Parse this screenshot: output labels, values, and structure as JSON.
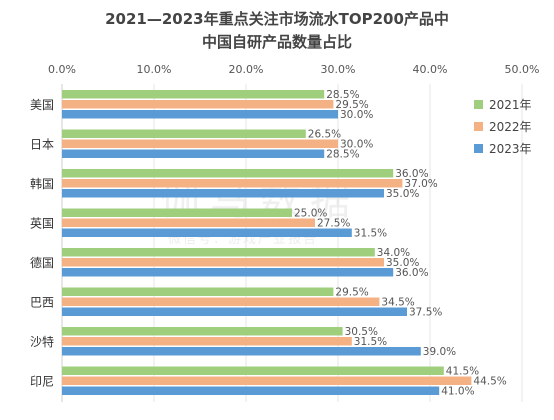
{
  "chart_data": {
    "type": "bar",
    "orientation": "horizontal",
    "title_line1": "2021—2023年重点关注市场流水TOP200产品中",
    "title_line2": "中国自研产品数量占比",
    "categories": [
      "美国",
      "日本",
      "韩国",
      "英国",
      "德国",
      "巴西",
      "沙特",
      "印尼"
    ],
    "series": [
      {
        "name": "2021年",
        "color": "#9fcf7d",
        "values": [
          28.5,
          26.5,
          36.0,
          25.0,
          34.0,
          29.5,
          30.5,
          41.5
        ]
      },
      {
        "name": "2022年",
        "color": "#f4b183",
        "values": [
          29.5,
          30.0,
          37.0,
          27.5,
          35.0,
          34.5,
          31.5,
          44.5
        ]
      },
      {
        "name": "2023年",
        "color": "#5b9bd5",
        "values": [
          30.0,
          28.5,
          35.0,
          31.5,
          36.0,
          37.5,
          39.0,
          41.0
        ]
      }
    ],
    "xlim": [
      0,
      50
    ],
    "xticks": [
      "0.0%",
      "10.0%",
      "20.0%",
      "30.0%",
      "40.0%",
      "50.0%"
    ],
    "xtick_values": [
      0,
      10,
      20,
      30,
      40,
      50
    ],
    "value_suffix": "%",
    "legend_position": "right",
    "grid": true
  },
  "watermark": "伽马数据",
  "watermark_sub": "微信号：游戏产业报告"
}
